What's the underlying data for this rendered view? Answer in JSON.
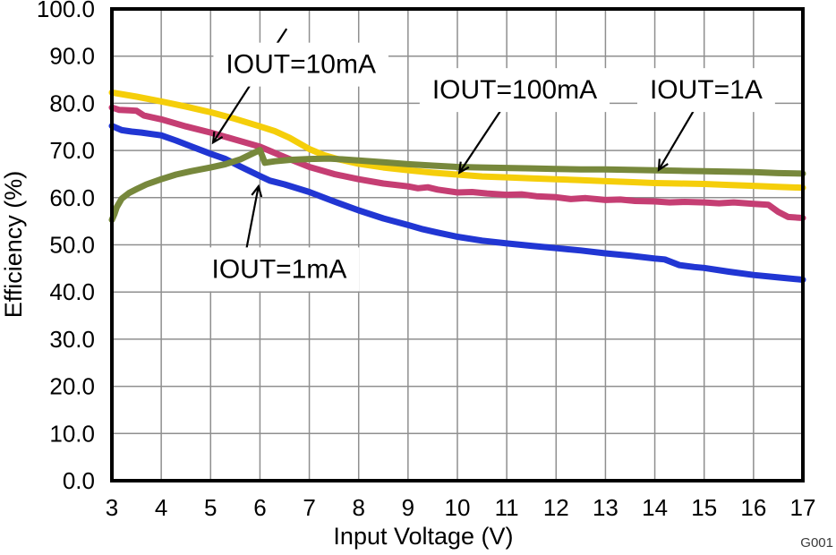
{
  "chart_data": {
    "type": "line",
    "title": "",
    "xlabel": "Input Voltage (V)",
    "ylabel": "Efficiency (%)",
    "watermark": "G001",
    "xlim": [
      3,
      17
    ],
    "ylim": [
      0,
      100
    ],
    "grid": true,
    "grid_color": "#8F8F8F",
    "frame_color": "#000000",
    "xticks": [
      3,
      4,
      5,
      6,
      7,
      8,
      9,
      10,
      11,
      12,
      13,
      14,
      15,
      16,
      17
    ],
    "yticks": [
      0,
      10,
      20,
      30,
      40,
      50,
      60,
      70,
      80,
      90,
      100
    ],
    "ytick_labels": [
      "0.0",
      "10.0",
      "20.0",
      "30.0",
      "40.0",
      "50.0",
      "60.0",
      "70.0",
      "80.0",
      "90.0",
      "100.0"
    ],
    "series": [
      {
        "name": "IOUT=1mA",
        "color": "#2136D3",
        "points": [
          [
            3,
            75.2
          ],
          [
            3.2,
            74.3
          ],
          [
            3.4,
            74.0
          ],
          [
            3.6,
            73.8
          ],
          [
            3.8,
            73.5
          ],
          [
            4,
            73.2
          ],
          [
            4.3,
            72.1
          ],
          [
            4.6,
            70.9
          ],
          [
            5,
            69.3
          ],
          [
            5.3,
            68.2
          ],
          [
            5.6,
            66.6
          ],
          [
            6,
            64.6
          ],
          [
            6.2,
            63.6
          ],
          [
            6.5,
            62.8
          ],
          [
            7,
            61.2
          ],
          [
            7.5,
            59.2
          ],
          [
            8,
            57.3
          ],
          [
            8.5,
            55.6
          ],
          [
            9,
            54.2
          ],
          [
            9.3,
            53.3
          ],
          [
            9.6,
            52.6
          ],
          [
            10,
            51.7
          ],
          [
            10.5,
            50.9
          ],
          [
            11,
            50.3
          ],
          [
            11.5,
            49.8
          ],
          [
            12,
            49.3
          ],
          [
            12.5,
            48.8
          ],
          [
            13,
            48.2
          ],
          [
            13.5,
            47.7
          ],
          [
            14,
            47.1
          ],
          [
            14.2,
            46.9
          ],
          [
            14.5,
            45.7
          ],
          [
            14.8,
            45.3
          ],
          [
            15,
            45.1
          ],
          [
            15.5,
            44.3
          ],
          [
            16,
            43.6
          ],
          [
            16.5,
            43.1
          ],
          [
            17,
            42.6
          ]
        ]
      },
      {
        "name": "IOUT=10mA",
        "color": "#C53E73",
        "points": [
          [
            3,
            79.1
          ],
          [
            3.15,
            78.6
          ],
          [
            3.35,
            78.5
          ],
          [
            3.5,
            78.4
          ],
          [
            3.65,
            77.4
          ],
          [
            4,
            76.6
          ],
          [
            4.5,
            75.1
          ],
          [
            5,
            73.8
          ],
          [
            5.5,
            72.3
          ],
          [
            6,
            70.8
          ],
          [
            6.5,
            68.6
          ],
          [
            7,
            66.5
          ],
          [
            7.5,
            65.0
          ],
          [
            8,
            63.9
          ],
          [
            8.5,
            63.0
          ],
          [
            9,
            62.4
          ],
          [
            9.2,
            62.0
          ],
          [
            9.4,
            62.2
          ],
          [
            9.6,
            61.7
          ],
          [
            10,
            61.1
          ],
          [
            10.3,
            61.2
          ],
          [
            10.6,
            60.9
          ],
          [
            11,
            60.6
          ],
          [
            11.3,
            60.7
          ],
          [
            11.6,
            60.3
          ],
          [
            12,
            60.1
          ],
          [
            12.3,
            59.7
          ],
          [
            12.6,
            59.9
          ],
          [
            13,
            59.5
          ],
          [
            13.3,
            59.6
          ],
          [
            13.6,
            59.3
          ],
          [
            14,
            59.2
          ],
          [
            14.3,
            59.0
          ],
          [
            14.6,
            59.1
          ],
          [
            15,
            59.0
          ],
          [
            15.3,
            58.8
          ],
          [
            15.6,
            59.0
          ],
          [
            16,
            58.7
          ],
          [
            16.3,
            58.5
          ],
          [
            16.5,
            57.0
          ],
          [
            16.7,
            55.9
          ],
          [
            17,
            55.7
          ]
        ]
      },
      {
        "name": "IOUT=100mA",
        "color": "#F5CE0A",
        "points": [
          [
            3,
            82.3
          ],
          [
            3.5,
            81.4
          ],
          [
            4,
            80.4
          ],
          [
            4.5,
            79.3
          ],
          [
            5,
            78.1
          ],
          [
            5.5,
            76.7
          ],
          [
            6,
            75.1
          ],
          [
            6.3,
            74.1
          ],
          [
            6.6,
            72.7
          ],
          [
            7,
            70.3
          ],
          [
            7.3,
            69.0
          ],
          [
            7.6,
            68.1
          ],
          [
            8,
            67.2
          ],
          [
            8.5,
            66.4
          ],
          [
            9,
            65.8
          ],
          [
            9.5,
            65.3
          ],
          [
            10,
            64.9
          ],
          [
            10.5,
            64.5
          ],
          [
            11,
            64.3
          ],
          [
            11.5,
            64.1
          ],
          [
            12,
            63.9
          ],
          [
            12.5,
            63.7
          ],
          [
            13,
            63.5
          ],
          [
            13.5,
            63.3
          ],
          [
            14,
            63.1
          ],
          [
            14.5,
            63.0
          ],
          [
            15,
            62.9
          ],
          [
            15.5,
            62.7
          ],
          [
            16,
            62.5
          ],
          [
            16.5,
            62.3
          ],
          [
            17,
            62.1
          ]
        ]
      },
      {
        "name": "IOUT=1A",
        "color": "#77883C",
        "points": [
          [
            3,
            55.3
          ],
          [
            3.05,
            56.5
          ],
          [
            3.1,
            58.0
          ],
          [
            3.2,
            59.8
          ],
          [
            3.35,
            61.0
          ],
          [
            3.5,
            61.8
          ],
          [
            3.7,
            62.8
          ],
          [
            4,
            63.9
          ],
          [
            4.3,
            64.9
          ],
          [
            4.6,
            65.6
          ],
          [
            5,
            66.4
          ],
          [
            5.3,
            67.1
          ],
          [
            5.6,
            68.1
          ],
          [
            5.8,
            69.1
          ],
          [
            6,
            70.1
          ],
          [
            6.1,
            67.4
          ],
          [
            6.3,
            67.7
          ],
          [
            6.6,
            68.0
          ],
          [
            7,
            68.2
          ],
          [
            7.4,
            68.3
          ],
          [
            7.7,
            68.1
          ],
          [
            8,
            67.9
          ],
          [
            8.5,
            67.5
          ],
          [
            9,
            67.1
          ],
          [
            9.5,
            66.8
          ],
          [
            10,
            66.5
          ],
          [
            10.5,
            66.4
          ],
          [
            11,
            66.3
          ],
          [
            11.5,
            66.2
          ],
          [
            12,
            66.1
          ],
          [
            12.5,
            66.0
          ],
          [
            13,
            66.0
          ],
          [
            13.5,
            65.9
          ],
          [
            14,
            65.8
          ],
          [
            14.5,
            65.7
          ],
          [
            15,
            65.6
          ],
          [
            15.5,
            65.5
          ],
          [
            16,
            65.4
          ],
          [
            16.5,
            65.2
          ],
          [
            17,
            65.1
          ]
        ]
      }
    ],
    "annotations": [
      {
        "text": "IOUT=10mA",
        "x": 6.83,
        "y": 88.3,
        "arrow_from": [
          6.54,
          95.8
        ],
        "arrow_to": [
          5.05,
          71.7
        ]
      },
      {
        "text": "IOUT=100mA",
        "x": 11.16,
        "y": 82.9,
        "arrow_from": [
          11.16,
          82.9
        ],
        "arrow_to": [
          10.04,
          65.3
        ]
      },
      {
        "text": "IOUT=1A",
        "x": 15.04,
        "y": 82.9,
        "arrow_from": [
          15.04,
          82.9
        ],
        "arrow_to": [
          14.08,
          65.9
        ]
      },
      {
        "text": "IOUT=1mA",
        "x": 6.39,
        "y": 44.9,
        "arrow_from": [
          5.63,
          43.9
        ],
        "arrow_to": [
          5.97,
          62.4
        ]
      }
    ]
  }
}
